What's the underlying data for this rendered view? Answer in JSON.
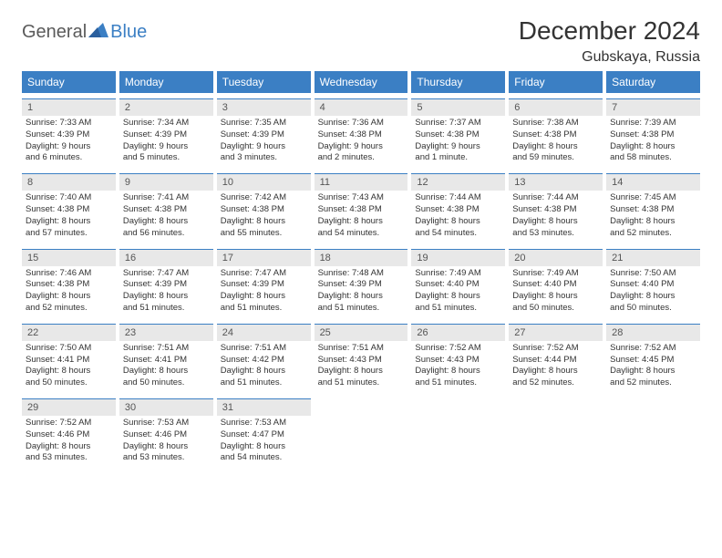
{
  "logo": {
    "general": "General",
    "blue": "Blue"
  },
  "title": "December 2024",
  "location": "Gubskaya, Russia",
  "colors": {
    "accent": "#3b7fc4",
    "header_text": "#ffffff",
    "daynum_bg": "#e8e8e8",
    "text": "#333333",
    "logo_gray": "#5a5a5a"
  },
  "day_headers": [
    "Sunday",
    "Monday",
    "Tuesday",
    "Wednesday",
    "Thursday",
    "Friday",
    "Saturday"
  ],
  "days": [
    {
      "n": "1",
      "sunrise": "Sunrise: 7:33 AM",
      "sunset": "Sunset: 4:39 PM",
      "day1": "Daylight: 9 hours",
      "day2": "and 6 minutes."
    },
    {
      "n": "2",
      "sunrise": "Sunrise: 7:34 AM",
      "sunset": "Sunset: 4:39 PM",
      "day1": "Daylight: 9 hours",
      "day2": "and 5 minutes."
    },
    {
      "n": "3",
      "sunrise": "Sunrise: 7:35 AM",
      "sunset": "Sunset: 4:39 PM",
      "day1": "Daylight: 9 hours",
      "day2": "and 3 minutes."
    },
    {
      "n": "4",
      "sunrise": "Sunrise: 7:36 AM",
      "sunset": "Sunset: 4:38 PM",
      "day1": "Daylight: 9 hours",
      "day2": "and 2 minutes."
    },
    {
      "n": "5",
      "sunrise": "Sunrise: 7:37 AM",
      "sunset": "Sunset: 4:38 PM",
      "day1": "Daylight: 9 hours",
      "day2": "and 1 minute."
    },
    {
      "n": "6",
      "sunrise": "Sunrise: 7:38 AM",
      "sunset": "Sunset: 4:38 PM",
      "day1": "Daylight: 8 hours",
      "day2": "and 59 minutes."
    },
    {
      "n": "7",
      "sunrise": "Sunrise: 7:39 AM",
      "sunset": "Sunset: 4:38 PM",
      "day1": "Daylight: 8 hours",
      "day2": "and 58 minutes."
    },
    {
      "n": "8",
      "sunrise": "Sunrise: 7:40 AM",
      "sunset": "Sunset: 4:38 PM",
      "day1": "Daylight: 8 hours",
      "day2": "and 57 minutes."
    },
    {
      "n": "9",
      "sunrise": "Sunrise: 7:41 AM",
      "sunset": "Sunset: 4:38 PM",
      "day1": "Daylight: 8 hours",
      "day2": "and 56 minutes."
    },
    {
      "n": "10",
      "sunrise": "Sunrise: 7:42 AM",
      "sunset": "Sunset: 4:38 PM",
      "day1": "Daylight: 8 hours",
      "day2": "and 55 minutes."
    },
    {
      "n": "11",
      "sunrise": "Sunrise: 7:43 AM",
      "sunset": "Sunset: 4:38 PM",
      "day1": "Daylight: 8 hours",
      "day2": "and 54 minutes."
    },
    {
      "n": "12",
      "sunrise": "Sunrise: 7:44 AM",
      "sunset": "Sunset: 4:38 PM",
      "day1": "Daylight: 8 hours",
      "day2": "and 54 minutes."
    },
    {
      "n": "13",
      "sunrise": "Sunrise: 7:44 AM",
      "sunset": "Sunset: 4:38 PM",
      "day1": "Daylight: 8 hours",
      "day2": "and 53 minutes."
    },
    {
      "n": "14",
      "sunrise": "Sunrise: 7:45 AM",
      "sunset": "Sunset: 4:38 PM",
      "day1": "Daylight: 8 hours",
      "day2": "and 52 minutes."
    },
    {
      "n": "15",
      "sunrise": "Sunrise: 7:46 AM",
      "sunset": "Sunset: 4:38 PM",
      "day1": "Daylight: 8 hours",
      "day2": "and 52 minutes."
    },
    {
      "n": "16",
      "sunrise": "Sunrise: 7:47 AM",
      "sunset": "Sunset: 4:39 PM",
      "day1": "Daylight: 8 hours",
      "day2": "and 51 minutes."
    },
    {
      "n": "17",
      "sunrise": "Sunrise: 7:47 AM",
      "sunset": "Sunset: 4:39 PM",
      "day1": "Daylight: 8 hours",
      "day2": "and 51 minutes."
    },
    {
      "n": "18",
      "sunrise": "Sunrise: 7:48 AM",
      "sunset": "Sunset: 4:39 PM",
      "day1": "Daylight: 8 hours",
      "day2": "and 51 minutes."
    },
    {
      "n": "19",
      "sunrise": "Sunrise: 7:49 AM",
      "sunset": "Sunset: 4:40 PM",
      "day1": "Daylight: 8 hours",
      "day2": "and 51 minutes."
    },
    {
      "n": "20",
      "sunrise": "Sunrise: 7:49 AM",
      "sunset": "Sunset: 4:40 PM",
      "day1": "Daylight: 8 hours",
      "day2": "and 50 minutes."
    },
    {
      "n": "21",
      "sunrise": "Sunrise: 7:50 AM",
      "sunset": "Sunset: 4:40 PM",
      "day1": "Daylight: 8 hours",
      "day2": "and 50 minutes."
    },
    {
      "n": "22",
      "sunrise": "Sunrise: 7:50 AM",
      "sunset": "Sunset: 4:41 PM",
      "day1": "Daylight: 8 hours",
      "day2": "and 50 minutes."
    },
    {
      "n": "23",
      "sunrise": "Sunrise: 7:51 AM",
      "sunset": "Sunset: 4:41 PM",
      "day1": "Daylight: 8 hours",
      "day2": "and 50 minutes."
    },
    {
      "n": "24",
      "sunrise": "Sunrise: 7:51 AM",
      "sunset": "Sunset: 4:42 PM",
      "day1": "Daylight: 8 hours",
      "day2": "and 51 minutes."
    },
    {
      "n": "25",
      "sunrise": "Sunrise: 7:51 AM",
      "sunset": "Sunset: 4:43 PM",
      "day1": "Daylight: 8 hours",
      "day2": "and 51 minutes."
    },
    {
      "n": "26",
      "sunrise": "Sunrise: 7:52 AM",
      "sunset": "Sunset: 4:43 PM",
      "day1": "Daylight: 8 hours",
      "day2": "and 51 minutes."
    },
    {
      "n": "27",
      "sunrise": "Sunrise: 7:52 AM",
      "sunset": "Sunset: 4:44 PM",
      "day1": "Daylight: 8 hours",
      "day2": "and 52 minutes."
    },
    {
      "n": "28",
      "sunrise": "Sunrise: 7:52 AM",
      "sunset": "Sunset: 4:45 PM",
      "day1": "Daylight: 8 hours",
      "day2": "and 52 minutes."
    },
    {
      "n": "29",
      "sunrise": "Sunrise: 7:52 AM",
      "sunset": "Sunset: 4:46 PM",
      "day1": "Daylight: 8 hours",
      "day2": "and 53 minutes."
    },
    {
      "n": "30",
      "sunrise": "Sunrise: 7:53 AM",
      "sunset": "Sunset: 4:46 PM",
      "day1": "Daylight: 8 hours",
      "day2": "and 53 minutes."
    },
    {
      "n": "31",
      "sunrise": "Sunrise: 7:53 AM",
      "sunset": "Sunset: 4:47 PM",
      "day1": "Daylight: 8 hours",
      "day2": "and 54 minutes."
    }
  ]
}
